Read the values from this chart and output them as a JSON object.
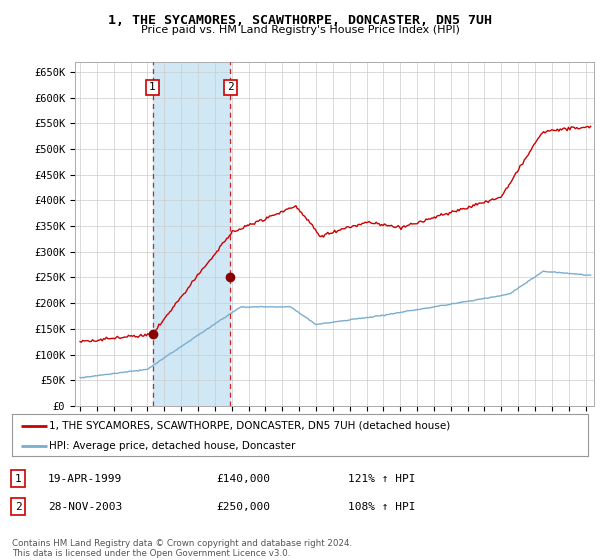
{
  "title": "1, THE SYCAMORES, SCAWTHORPE, DONCASTER, DN5 7UH",
  "subtitle": "Price paid vs. HM Land Registry's House Price Index (HPI)",
  "ylabel_ticks": [
    "£0",
    "£50K",
    "£100K",
    "£150K",
    "£200K",
    "£250K",
    "£300K",
    "£350K",
    "£400K",
    "£450K",
    "£500K",
    "£550K",
    "£600K",
    "£650K"
  ],
  "ytick_values": [
    0,
    50000,
    100000,
    150000,
    200000,
    250000,
    300000,
    350000,
    400000,
    450000,
    500000,
    550000,
    600000,
    650000
  ],
  "ylim": [
    0,
    670000
  ],
  "xlim_start": 1994.7,
  "xlim_end": 2025.5,
  "red_line_color": "#cc0000",
  "blue_line_color": "#7aadce",
  "purchase1_x": 1999.3,
  "purchase1_y": 140000,
  "purchase2_x": 2003.92,
  "purchase2_y": 250000,
  "legend_line1": "1, THE SYCAMORES, SCAWTHORPE, DONCASTER, DN5 7UH (detached house)",
  "legend_line2": "HPI: Average price, detached house, Doncaster",
  "purchase1_date": "19-APR-1999",
  "purchase1_price": "£140,000",
  "purchase1_hpi": "121% ↑ HPI",
  "purchase2_date": "28-NOV-2003",
  "purchase2_price": "£250,000",
  "purchase2_hpi": "108% ↑ HPI",
  "footer": "Contains HM Land Registry data © Crown copyright and database right 2024.\nThis data is licensed under the Open Government Licence v3.0.",
  "background_color": "#ffffff",
  "grid_color": "#cccccc",
  "span_color": "#d0e8f5"
}
